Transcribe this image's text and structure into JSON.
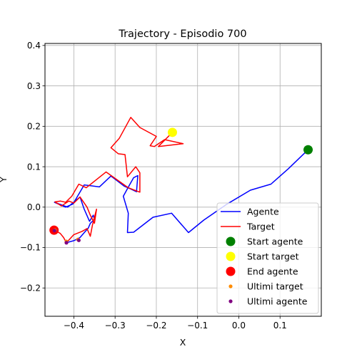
{
  "chart_data": {
    "type": "line",
    "title": "Trajectory - Episodio 700",
    "xlabel": "X",
    "ylabel": "Y",
    "xlim": [
      -0.47,
      0.2
    ],
    "ylim": [
      -0.27,
      0.405
    ],
    "xticks": [
      -0.4,
      -0.3,
      -0.2,
      -0.1,
      0.0,
      0.1
    ],
    "xtick_labels": [
      "−0.4",
      "−0.3",
      "−0.2",
      "−0.1",
      "0.0",
      "0.1"
    ],
    "yticks": [
      -0.2,
      -0.1,
      0.0,
      0.1,
      0.2,
      0.3,
      0.4
    ],
    "ytick_labels": [
      "−0.2",
      "−0.1",
      "0.0",
      "0.1",
      "0.2",
      "0.3",
      "0.4"
    ],
    "grid": true,
    "legend_position": "lower right",
    "series": [
      {
        "name": "Agente",
        "kind": "line",
        "color": "#0000ff",
        "x": [
          0.168,
          0.12,
          0.078,
          0.028,
          -0.028,
          -0.085,
          -0.122,
          -0.163,
          -0.208,
          -0.255,
          -0.27,
          -0.268,
          -0.28,
          -0.265,
          -0.255,
          -0.245,
          -0.248,
          -0.262,
          -0.278,
          -0.31,
          -0.338,
          -0.375,
          -0.402,
          -0.42,
          -0.447,
          -0.415,
          -0.385,
          -0.375,
          -0.362,
          -0.353,
          -0.35,
          -0.36,
          -0.365,
          -0.372,
          -0.385,
          -0.4,
          -0.418
        ],
        "y": [
          0.142,
          0.095,
          0.057,
          0.042,
          0.008,
          -0.032,
          -0.063,
          -0.015,
          -0.025,
          -0.062,
          -0.063,
          -0.015,
          0.027,
          0.055,
          0.073,
          0.078,
          0.038,
          0.045,
          0.052,
          0.077,
          0.05,
          0.055,
          0.008,
          0.0,
          0.012,
          0.0,
          0.025,
          -0.005,
          -0.035,
          -0.02,
          -0.03,
          -0.04,
          -0.052,
          -0.06,
          -0.075,
          -0.083,
          -0.088
        ]
      },
      {
        "name": "Target",
        "kind": "line",
        "color": "#ff0000",
        "x": [
          -0.161,
          -0.195,
          -0.135,
          -0.18,
          -0.205,
          -0.215,
          -0.2,
          -0.24,
          -0.262,
          -0.29,
          -0.31,
          -0.292,
          -0.276,
          -0.27,
          -0.25,
          -0.24,
          -0.24,
          -0.268,
          -0.322,
          -0.37,
          -0.388,
          -0.405,
          -0.42,
          -0.432,
          -0.446,
          -0.43,
          -0.412,
          -0.4,
          -0.385,
          -0.368,
          -0.36,
          -0.35,
          -0.345,
          -0.355,
          -0.36,
          -0.368,
          -0.38,
          -0.4,
          -0.418,
          -0.425,
          -0.433,
          -0.447
        ],
        "y": [
          0.185,
          0.15,
          0.157,
          0.167,
          0.15,
          0.152,
          0.175,
          0.197,
          0.222,
          0.17,
          0.147,
          0.132,
          0.13,
          0.075,
          0.1,
          0.085,
          0.037,
          0.048,
          0.087,
          0.048,
          0.057,
          0.027,
          0.012,
          0.015,
          0.013,
          0.003,
          0.015,
          0.01,
          0.025,
          0.0,
          -0.02,
          -0.04,
          -0.005,
          -0.045,
          -0.072,
          -0.053,
          -0.06,
          -0.068,
          -0.088,
          -0.075,
          -0.065,
          -0.057
        ]
      }
    ],
    "markers": [
      {
        "name": "Start agente",
        "color": "#008000",
        "size": "large",
        "x": 0.168,
        "y": 0.142
      },
      {
        "name": "Start target",
        "color": "#ffff00",
        "size": "large",
        "x": -0.161,
        "y": 0.185
      },
      {
        "name": "End agente",
        "color": "#ff0000",
        "size": "large",
        "x": -0.448,
        "y": -0.057
      },
      {
        "name": "Ultimi target",
        "color": "#ff8c00",
        "size": "small",
        "x": [
          -0.446,
          -0.418,
          -0.39
        ],
        "y": [
          -0.057,
          -0.085,
          -0.08
        ]
      },
      {
        "name": "Ultimi agente",
        "color": "#800080",
        "size": "small",
        "x": [
          -0.447,
          -0.418,
          -0.388
        ],
        "y": [
          -0.058,
          -0.088,
          -0.082
        ]
      }
    ]
  }
}
